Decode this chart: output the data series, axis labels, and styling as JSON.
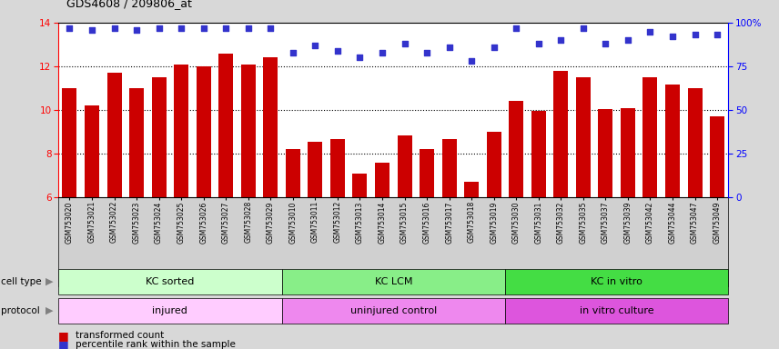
{
  "title": "GDS4608 / 209806_at",
  "samples": [
    "GSM753020",
    "GSM753021",
    "GSM753022",
    "GSM753023",
    "GSM753024",
    "GSM753025",
    "GSM753026",
    "GSM753027",
    "GSM753028",
    "GSM753029",
    "GSM753010",
    "GSM753011",
    "GSM753012",
    "GSM753013",
    "GSM753014",
    "GSM753015",
    "GSM753016",
    "GSM753017",
    "GSM753018",
    "GSM753019",
    "GSM753030",
    "GSM753031",
    "GSM753032",
    "GSM753035",
    "GSM753037",
    "GSM753039",
    "GSM753042",
    "GSM753044",
    "GSM753047",
    "GSM753049"
  ],
  "bar_values": [
    11.0,
    10.2,
    11.7,
    11.0,
    11.5,
    12.1,
    12.0,
    12.6,
    12.1,
    12.4,
    8.2,
    8.55,
    8.65,
    7.1,
    7.6,
    8.85,
    8.2,
    8.65,
    6.7,
    9.0,
    10.4,
    9.95,
    11.8,
    11.5,
    10.05,
    10.1,
    11.5,
    11.15,
    11.0,
    9.7
  ],
  "percentile_values": [
    97,
    96,
    97,
    96,
    97,
    97,
    97,
    97,
    97,
    97,
    83,
    87,
    84,
    80,
    83,
    88,
    83,
    86,
    78,
    86,
    97,
    88,
    90,
    97,
    88,
    90,
    95,
    92,
    93,
    93
  ],
  "ylim": [
    6,
    14
  ],
  "yticks": [
    6,
    8,
    10,
    12,
    14
  ],
  "bar_color": "#CC0000",
  "dot_color": "#3333CC",
  "right_yticks": [
    0,
    25,
    50,
    75,
    100
  ],
  "right_ylim": [
    0,
    100
  ],
  "cell_type_colors": [
    "#CCFFCC",
    "#88EE88",
    "#44DD44"
  ],
  "cell_type_labels": [
    "KC sorted",
    "KC LCM",
    "KC in vitro"
  ],
  "protocol_colors": [
    "#FFCCFF",
    "#EE88EE",
    "#DD55DD"
  ],
  "protocol_labels": [
    "injured",
    "uninjured control",
    "in vitro culture"
  ],
  "group_boundaries": [
    0,
    10,
    20,
    30
  ],
  "bg_color": "#D8D8D8",
  "plot_bg_color": "#FFFFFF",
  "xtick_bg_color": "#D0D0D0"
}
